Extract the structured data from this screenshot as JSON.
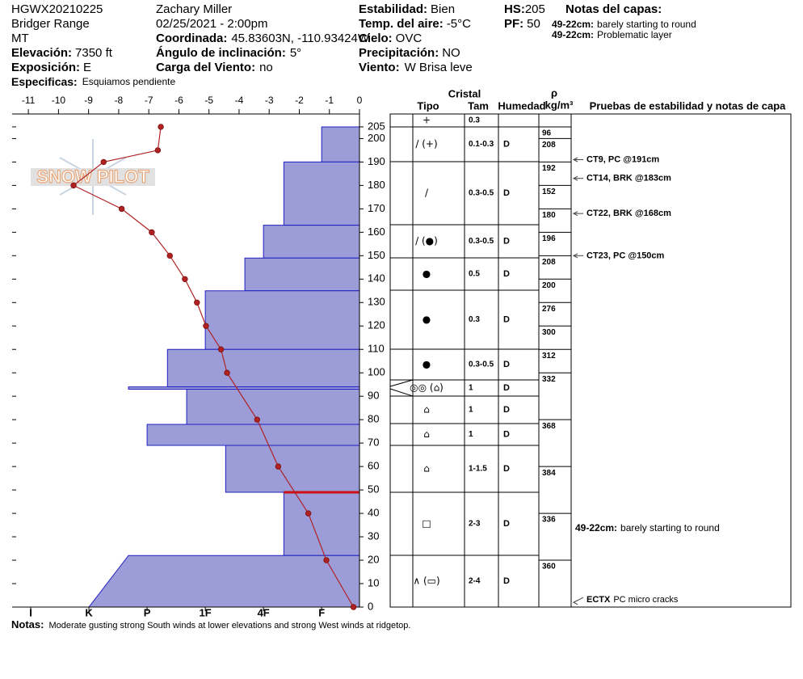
{
  "header": {
    "site_id": "HGWX20210225",
    "range": "Bridger Range",
    "state": "MT",
    "observer": "Zachary Miller",
    "datetime": "02/25/2021 - 2:00pm",
    "elevation": {
      "label": "Elevación:",
      "value": "7350 ft"
    },
    "aspect": {
      "label": "Exposición:",
      "value": "E"
    },
    "specifics": {
      "label": "Especificas:",
      "value": "Esquiamos pendiente"
    },
    "coordinates": {
      "label": "Coordinada:",
      "value": "45.83603N, -110.93424W"
    },
    "slope_angle": {
      "label": "Ángulo de inclinación:",
      "value": "5°"
    },
    "wind_loading": {
      "label": "Carga del Viento:",
      "value": "no"
    },
    "stability": {
      "label": "Estabilidad:",
      "value": "Bien"
    },
    "air_temp": {
      "label": "Temp. del aire:",
      "value": "-5°C"
    },
    "sky": {
      "label": "Cielo:",
      "value": "OVC"
    },
    "precipitation": {
      "label": "Precipitación:",
      "value": "NO"
    },
    "wind": {
      "label": "Viento:",
      "value": "W Brisa leve"
    },
    "hs": {
      "label": "HS:",
      "value": 205
    },
    "pf": {
      "label": "PF:",
      "value": 50
    },
    "layer_notes_title": "Notas del capas:",
    "layer_notes": [
      {
        "range": "49-22cm:",
        "text": "barely starting to round"
      },
      {
        "range": "49-22cm:",
        "text": "Problematic layer"
      }
    ]
  },
  "logo": "SNOW PILOT",
  "chart_data": {
    "type": "snow-profile",
    "xlim": [
      -11.54,
      0
    ],
    "xticks": [
      -11,
      -10,
      -9,
      -8,
      -7,
      -6,
      -5,
      -4,
      -3,
      -2,
      -1,
      0
    ],
    "ylim": [
      0,
      210.5
    ],
    "yticks": [
      0,
      10,
      20,
      30,
      40,
      50,
      60,
      70,
      80,
      90,
      100,
      110,
      120,
      130,
      140,
      150,
      160,
      170,
      180,
      190,
      200,
      205
    ],
    "hardness_xlim": [
      0.35,
      6.32
    ],
    "hardness_xticks": [
      {
        "value": 1,
        "label": "F"
      },
      {
        "value": 2,
        "label": "4F"
      },
      {
        "value": 3,
        "label": "1F"
      },
      {
        "value": 4,
        "label": "P"
      },
      {
        "value": 5,
        "label": "K"
      },
      {
        "value": 6,
        "label": "I"
      }
    ],
    "layers": {
      "color": "#9c9cd8",
      "edge_color": "#2020c0",
      "top": [
        205,
        190,
        163,
        149,
        135,
        110,
        94,
        93,
        78,
        69,
        49,
        22
      ],
      "bottom": [
        190,
        163,
        149,
        135,
        110,
        94,
        93,
        78,
        69,
        49,
        22,
        0
      ],
      "hardness_top": [
        1,
        1.65,
        2,
        2.32,
        3,
        3.65,
        4.32,
        3.32,
        4,
        2.65,
        1.65,
        4.32
      ],
      "hardness_bottom": [
        1,
        1.65,
        2,
        2.32,
        3,
        3.65,
        4.32,
        3.32,
        4,
        2.65,
        1.65,
        5
      ]
    },
    "highlight": {
      "height": 49,
      "color": "#cc1111"
    },
    "temperature": {
      "color": "#b02222",
      "heights": [
        205,
        195,
        190,
        180,
        170,
        160,
        150,
        140,
        130,
        120,
        110,
        100,
        80,
        60,
        40,
        20,
        0
      ],
      "temps": [
        -6.6,
        -6.7,
        -8.5,
        -9.5,
        -7.9,
        -6.9,
        -6.3,
        -5.8,
        -5.4,
        -5.1,
        -4.6,
        -4.4,
        -3.4,
        -2.7,
        -1.7,
        -1.1,
        -0.2
      ]
    },
    "columns": {
      "crystal": "Cristal",
      "type": "Tipo",
      "size": "Tam",
      "moisture": "Humedad",
      "density": "ρ",
      "density_unit": "kg/m³",
      "tests": "Pruebas de estabilidad y notas de capa"
    },
    "crystals": [
      {
        "grain": "+",
        "size": "0.3"
      },
      {
        "grain": "/ (+)",
        "size": "0.1-0.3",
        "moisture": "D"
      },
      {
        "grain": "/",
        "size": "0.3-0.5",
        "moisture": "D"
      },
      {
        "grain": "/ (●)",
        "size": "0.3-0.5",
        "moisture": "D"
      },
      {
        "grain": "●",
        "size": "0.5",
        "moisture": "D"
      },
      {
        "grain": "●",
        "size": "0.3",
        "moisture": "D"
      },
      {
        "grain": "●",
        "size": "0.3-0.5",
        "moisture": "D"
      },
      {
        "grain": "◎◎ (⌂)",
        "size": "1",
        "moisture": "D"
      },
      {
        "grain": "⌂",
        "size": "1",
        "moisture": "D"
      },
      {
        "grain": "⌂",
        "size": "1",
        "moisture": "D"
      },
      {
        "grain": "⌂",
        "size": "1-1.5",
        "moisture": "D"
      },
      {
        "grain": "□",
        "size": "2-3",
        "moisture": "D"
      },
      {
        "grain": "∧ (▭)",
        "size": "2-4",
        "moisture": "D"
      }
    ],
    "density": {
      "tops": [
        205,
        200,
        190,
        180,
        170,
        160,
        150,
        140,
        130,
        120,
        110,
        100,
        80,
        60,
        40,
        20
      ],
      "values": [
        96,
        208,
        192,
        152,
        180,
        196,
        208,
        200,
        276,
        300,
        312,
        332,
        368,
        384,
        336,
        360
      ]
    },
    "tests": [
      {
        "label": "CT9, PC @191cm",
        "height": 191
      },
      {
        "label": "CT14, BRK @183cm",
        "height": 183
      },
      {
        "label": "CT22, BRK @168cm",
        "height": 168
      },
      {
        "label": "CT23, PC @150cm",
        "height": 150
      },
      {
        "label": "ECTX",
        "note": "PC micro cracks",
        "height": 2
      }
    ],
    "table_note": {
      "range": "49-22cm:",
      "text": "barely starting to round",
      "top": 49,
      "bottom": 22
    }
  },
  "notes": {
    "label": "Notas:",
    "text": "Moderate gusting strong South winds at lower elevations and strong West winds at ridgetop."
  }
}
